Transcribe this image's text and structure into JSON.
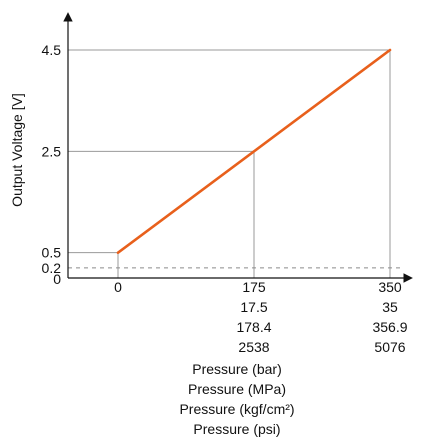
{
  "chart_data": {
    "type": "line",
    "title": "",
    "ylabel": "Output Voltage [V]",
    "xlabels": [
      "Pressure (bar)",
      "Pressure (MPa)",
      "Pressure (kgf/cm²)",
      "Pressure (psi)"
    ],
    "x": [
      0,
      350
    ],
    "y": [
      0.5,
      4.5
    ],
    "xlim": [
      0,
      350
    ],
    "ylim": [
      0,
      4.5
    ],
    "y_ticks": [
      {
        "value": 0,
        "label": "0"
      },
      {
        "value": 0.2,
        "label": "0.2"
      },
      {
        "value": 0.5,
        "label": "0.5"
      },
      {
        "value": 2.5,
        "label": "2.5"
      },
      {
        "value": 4.5,
        "label": "4.5"
      }
    ],
    "x_ticks": [
      {
        "value": 0,
        "labels": [
          "0"
        ]
      },
      {
        "value": 175,
        "labels": [
          "175",
          "17.5",
          "178.4",
          "2538"
        ]
      },
      {
        "value": 350,
        "labels": [
          "350",
          "35",
          "356.9",
          "5076"
        ]
      }
    ],
    "reference_lines": [
      {
        "axis": "y",
        "value": 0.2,
        "style": "dashed"
      }
    ],
    "guide_points": [
      {
        "x": 0,
        "y": 0.5
      },
      {
        "x": 175,
        "y": 2.5
      },
      {
        "x": 350,
        "y": 4.5
      }
    ],
    "line_color": "#E8601C",
    "grid": false
  }
}
